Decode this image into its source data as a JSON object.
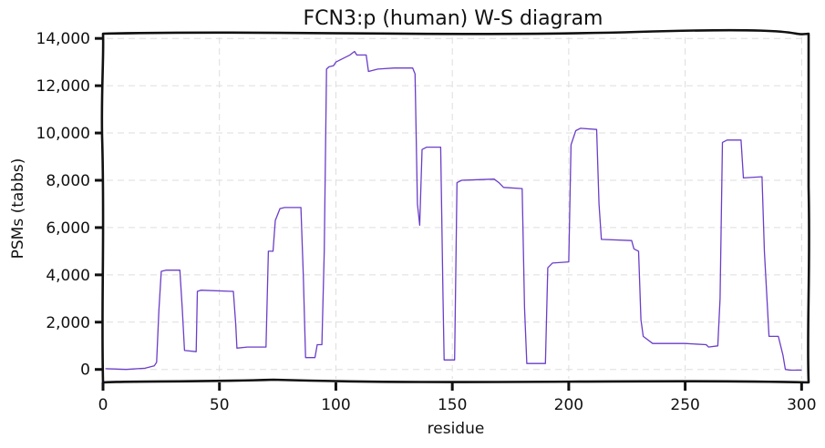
{
  "chart_data": {
    "type": "line",
    "title": "FCN3:p (human) W-S diagram",
    "xlabel": "residue",
    "ylabel": "PSMs (tabbs)",
    "xlim": [
      0,
      303
    ],
    "ylim": [
      -550,
      14200
    ],
    "grid": true,
    "x_ticks": [
      0,
      50,
      100,
      150,
      200,
      250,
      300
    ],
    "x_tick_labels": [
      "0",
      "50",
      "100",
      "150",
      "200",
      "250",
      "300"
    ],
    "y_ticks": [
      0,
      2000,
      4000,
      6000,
      8000,
      10000,
      12000,
      14000
    ],
    "y_tick_labels": [
      "0",
      "2,000",
      "4,000",
      "6,000",
      "8,000",
      "10,000",
      "12,000",
      "14,000"
    ],
    "colors": {
      "series": "#6a3ec8",
      "frame": "#111111",
      "grid": "#dddddd"
    },
    "series": [
      {
        "points": [
          [
            1,
            30
          ],
          [
            10,
            0
          ],
          [
            18,
            50
          ],
          [
            22,
            150
          ],
          [
            23,
            300
          ],
          [
            24,
            2500
          ],
          [
            25,
            4150
          ],
          [
            27,
            4200
          ],
          [
            33,
            4200
          ],
          [
            34,
            2600
          ],
          [
            35,
            800
          ],
          [
            40,
            750
          ],
          [
            40.5,
            3300
          ],
          [
            42,
            3350
          ],
          [
            56,
            3300
          ],
          [
            57,
            1900
          ],
          [
            57.5,
            900
          ],
          [
            62,
            950
          ],
          [
            70,
            950
          ],
          [
            71,
            5000
          ],
          [
            73,
            5000
          ],
          [
            74,
            6300
          ],
          [
            76,
            6800
          ],
          [
            78,
            6850
          ],
          [
            85,
            6850
          ],
          [
            86,
            4000
          ],
          [
            87,
            500
          ],
          [
            91,
            500
          ],
          [
            92,
            1050
          ],
          [
            94,
            1050
          ],
          [
            95,
            5000
          ],
          [
            96,
            12700
          ],
          [
            97,
            12800
          ],
          [
            99,
            12850
          ],
          [
            100,
            13000
          ],
          [
            102,
            13100
          ],
          [
            106,
            13300
          ],
          [
            108,
            13450
          ],
          [
            109,
            13300
          ],
          [
            113,
            13300
          ],
          [
            114,
            12600
          ],
          [
            118,
            12700
          ],
          [
            125,
            12750
          ],
          [
            133,
            12750
          ],
          [
            134,
            12500
          ],
          [
            135,
            7000
          ],
          [
            136,
            6100
          ],
          [
            137,
            9300
          ],
          [
            139,
            9400
          ],
          [
            145,
            9400
          ],
          [
            146,
            3000
          ],
          [
            146.5,
            400
          ],
          [
            151,
            400
          ],
          [
            152,
            7900
          ],
          [
            154,
            8000
          ],
          [
            168,
            8050
          ],
          [
            170,
            7900
          ],
          [
            172,
            7700
          ],
          [
            180,
            7650
          ],
          [
            181,
            2600
          ],
          [
            182,
            250
          ],
          [
            190,
            250
          ],
          [
            191,
            4300
          ],
          [
            193,
            4500
          ],
          [
            200,
            4550
          ],
          [
            201,
            9500
          ],
          [
            203,
            10100
          ],
          [
            205,
            10200
          ],
          [
            212,
            10150
          ],
          [
            213,
            7000
          ],
          [
            214,
            5500
          ],
          [
            227,
            5450
          ],
          [
            228,
            5100
          ],
          [
            230,
            5000
          ],
          [
            231,
            2100
          ],
          [
            232,
            1400
          ],
          [
            236,
            1100
          ],
          [
            250,
            1100
          ],
          [
            259,
            1050
          ],
          [
            260,
            950
          ],
          [
            264,
            1000
          ],
          [
            265,
            3000
          ],
          [
            266,
            9600
          ],
          [
            268,
            9700
          ],
          [
            274,
            9700
          ],
          [
            275,
            8100
          ],
          [
            283,
            8150
          ],
          [
            284,
            5000
          ],
          [
            286,
            1400
          ],
          [
            290,
            1400
          ],
          [
            292,
            600
          ],
          [
            293,
            0
          ],
          [
            295,
            -30
          ],
          [
            300,
            -30
          ]
        ]
      }
    ]
  }
}
